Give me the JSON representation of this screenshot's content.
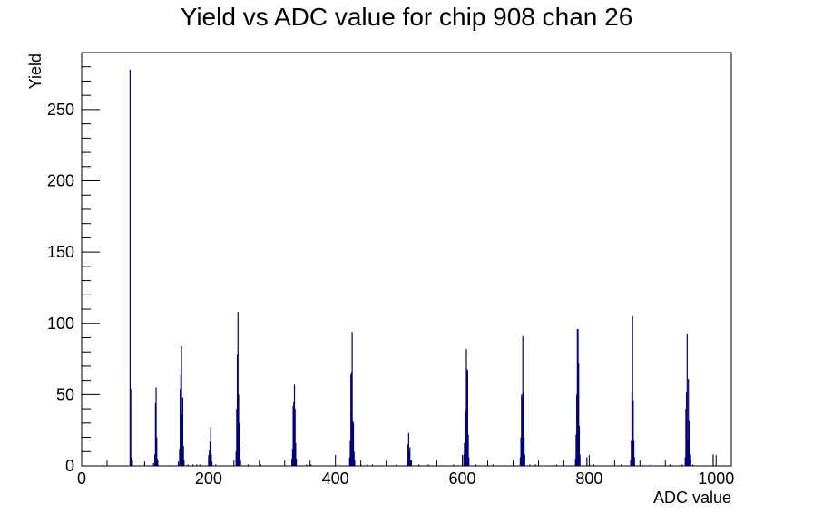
{
  "colors": {
    "series": "#00007f",
    "axis": "#000000",
    "background": "#ffffff"
  },
  "chart_data": {
    "type": "bar",
    "title": "Yield vs ADC value for chip 908 chan 26",
    "xlabel": "ADC value",
    "ylabel": "Yield",
    "xlim": [
      0,
      1024
    ],
    "ylim": [
      0,
      290
    ],
    "grid": false,
    "legend": "none",
    "x_ticks": [
      0,
      200,
      400,
      600,
      800,
      1000
    ],
    "y_ticks": [
      0,
      50,
      100,
      150,
      200,
      250
    ],
    "series": [
      {
        "values": [
          [
            76,
            278
          ],
          [
            77,
            54
          ],
          [
            78,
            6
          ],
          [
            113,
            2
          ],
          [
            115,
            8
          ],
          [
            116,
            44
          ],
          [
            117,
            55
          ],
          [
            118,
            20
          ],
          [
            119,
            5
          ],
          [
            152,
            3
          ],
          [
            154,
            12
          ],
          [
            155,
            54
          ],
          [
            156,
            64
          ],
          [
            157,
            84
          ],
          [
            158,
            36
          ],
          [
            159,
            48
          ],
          [
            160,
            14
          ],
          [
            161,
            4
          ],
          [
            200,
            4
          ],
          [
            201,
            11
          ],
          [
            202,
            17
          ],
          [
            203,
            27
          ],
          [
            204,
            8
          ],
          [
            205,
            3
          ],
          [
            243,
            10
          ],
          [
            244,
            40
          ],
          [
            245,
            78
          ],
          [
            246,
            108
          ],
          [
            247,
            50
          ],
          [
            248,
            30
          ],
          [
            249,
            12
          ],
          [
            250,
            4
          ],
          [
            331,
            5
          ],
          [
            332,
            12
          ],
          [
            333,
            42
          ],
          [
            334,
            45
          ],
          [
            335,
            57
          ],
          [
            336,
            40
          ],
          [
            337,
            16
          ],
          [
            338,
            5
          ],
          [
            422,
            6
          ],
          [
            423,
            18
          ],
          [
            424,
            64
          ],
          [
            425,
            66
          ],
          [
            426,
            94
          ],
          [
            427,
            32
          ],
          [
            428,
            30
          ],
          [
            429,
            10
          ],
          [
            430,
            4
          ],
          [
            513,
            6
          ],
          [
            514,
            15
          ],
          [
            515,
            23
          ],
          [
            516,
            10
          ],
          [
            517,
            13
          ],
          [
            518,
            4
          ],
          [
            602,
            8
          ],
          [
            603,
            16
          ],
          [
            604,
            40
          ],
          [
            605,
            38
          ],
          [
            606,
            82
          ],
          [
            607,
            68
          ],
          [
            608,
            67
          ],
          [
            609,
            22
          ],
          [
            610,
            6
          ],
          [
            691,
            6
          ],
          [
            692,
            20
          ],
          [
            693,
            50
          ],
          [
            694,
            48
          ],
          [
            695,
            91
          ],
          [
            696,
            52
          ],
          [
            697,
            20
          ],
          [
            698,
            8
          ],
          [
            778,
            5
          ],
          [
            779,
            22
          ],
          [
            780,
            50
          ],
          [
            781,
            96
          ],
          [
            782,
            96
          ],
          [
            783,
            72
          ],
          [
            784,
            28
          ],
          [
            785,
            8
          ],
          [
            865,
            4
          ],
          [
            866,
            18
          ],
          [
            867,
            52
          ],
          [
            868,
            105
          ],
          [
            869,
            46
          ],
          [
            870,
            18
          ],
          [
            871,
            6
          ],
          [
            951,
            6
          ],
          [
            952,
            40
          ],
          [
            953,
            52
          ],
          [
            954,
            93
          ],
          [
            955,
            18
          ],
          [
            956,
            61
          ],
          [
            957,
            32
          ],
          [
            958,
            8
          ],
          [
            99,
            3
          ],
          [
            167,
            1
          ],
          [
            175,
            1
          ],
          [
            181,
            1
          ],
          [
            186,
            1
          ],
          [
            211,
            1
          ],
          [
            262,
            1
          ],
          [
            282,
            1
          ],
          [
            354,
            1
          ],
          [
            361,
            1
          ],
          [
            440,
            1
          ],
          [
            450,
            1
          ],
          [
            458,
            1
          ],
          [
            480,
            1
          ],
          [
            496,
            1
          ],
          [
            531,
            1
          ],
          [
            546,
            1
          ],
          [
            586,
            1
          ],
          [
            621,
            1
          ],
          [
            648,
            1
          ],
          [
            706,
            1
          ],
          [
            715,
            1
          ],
          [
            748,
            1
          ],
          [
            796,
            6
          ],
          [
            800,
            1
          ],
          [
            807,
            1
          ],
          [
            850,
            1
          ],
          [
            883,
            1
          ],
          [
            897,
            1
          ],
          [
            927,
            1
          ],
          [
            946,
            1
          ],
          [
            963,
            1
          ],
          [
            995,
            8
          ]
        ]
      }
    ]
  }
}
